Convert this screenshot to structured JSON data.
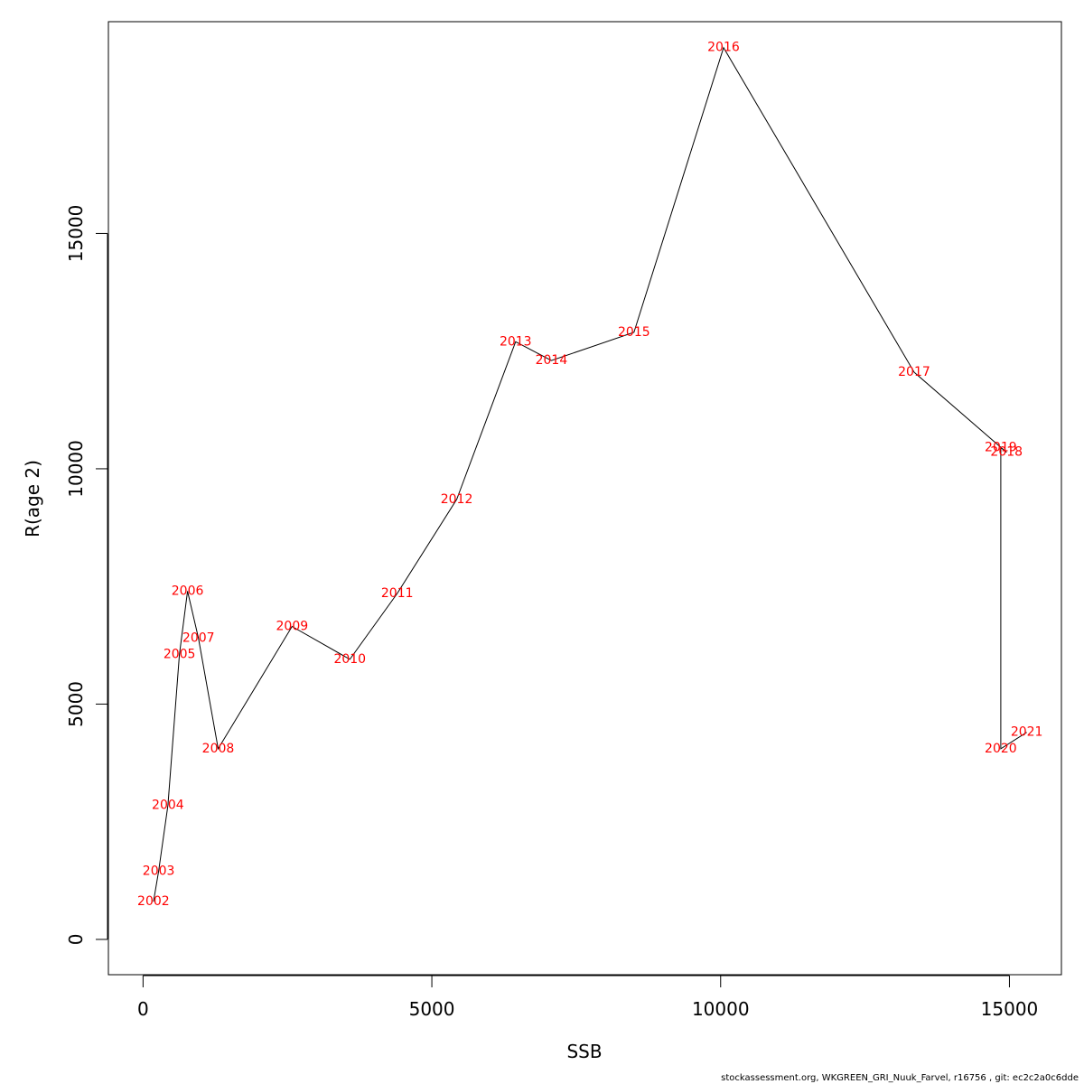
{
  "chart_data": {
    "type": "line",
    "title": "",
    "xlabel": "SSB",
    "ylabel": "R(age 2)",
    "xlim": [
      -600,
      15900
    ],
    "ylim": [
      -750,
      19500
    ],
    "xticks": [
      0,
      5000,
      10000,
      15000
    ],
    "xtick_labels": [
      "0",
      "5000",
      "10000",
      "15000"
    ],
    "yticks": [
      0,
      5000,
      10000,
      15000
    ],
    "ytick_labels": [
      "0",
      "5000",
      "10000",
      "15000"
    ],
    "grid": false,
    "line_color": "#000000",
    "label_color": "#ff0000",
    "points": [
      {
        "label": "2002",
        "x": 180,
        "y": 800
      },
      {
        "label": "2003",
        "x": 270,
        "y": 1450
      },
      {
        "label": "2004",
        "x": 430,
        "y": 2850
      },
      {
        "label": "2005",
        "x": 630,
        "y": 6050
      },
      {
        "label": "2006",
        "x": 770,
        "y": 7400
      },
      {
        "label": "2007",
        "x": 960,
        "y": 6400
      },
      {
        "label": "2008",
        "x": 1300,
        "y": 4050
      },
      {
        "label": "2009",
        "x": 2580,
        "y": 6650
      },
      {
        "label": "2010",
        "x": 3580,
        "y": 5950
      },
      {
        "label": "2011",
        "x": 4400,
        "y": 7350
      },
      {
        "label": "2012",
        "x": 5430,
        "y": 9350
      },
      {
        "label": "2013",
        "x": 6450,
        "y": 12700
      },
      {
        "label": "2014",
        "x": 7070,
        "y": 12300
      },
      {
        "label": "2015",
        "x": 8500,
        "y": 12900
      },
      {
        "label": "2016",
        "x": 10050,
        "y": 18950
      },
      {
        "label": "2017",
        "x": 13350,
        "y": 12050
      },
      {
        "label": "2018",
        "x": 14950,
        "y": 10350
      },
      {
        "label": "2019",
        "x": 14850,
        "y": 10450
      },
      {
        "label": "2020",
        "x": 14850,
        "y": 4050
      },
      {
        "label": "2021",
        "x": 15300,
        "y": 4400
      }
    ]
  },
  "footer": {
    "text": "stockassessment.org, WKGREEN_GRI_Nuuk_Farvel, r16756 , git: ec2c2a0c6dde"
  }
}
